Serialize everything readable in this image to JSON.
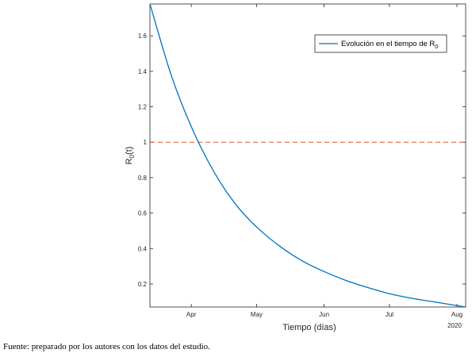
{
  "chart_data": {
    "type": "line",
    "xlabel": "Tiempo (días)",
    "ylabel_main": "R",
    "ylabel_sub": "0",
    "ylabel_tail": "(t)",
    "x_tick_labels": [
      "Apr",
      "May",
      "Jun",
      "Jul",
      "Aug"
    ],
    "x_year_label": "2020",
    "x_range_days": [
      0,
      145
    ],
    "x_tick_days": [
      19,
      49,
      80,
      110,
      141
    ],
    "ylim": [
      0.07,
      1.78
    ],
    "y_ticks": [
      0.2,
      0.4,
      0.6,
      0.8,
      1,
      1.2,
      1.4,
      1.6
    ],
    "y_tick_labels": [
      "0.2",
      "0.4",
      "0.6",
      "0.8",
      "1",
      "1.2",
      "1.4",
      "1.6"
    ],
    "series": [
      {
        "name_main": "Evolución en el tiempo de R",
        "name_sub": "0",
        "color": "#0072BD",
        "x": [
          0,
          10,
          20,
          30,
          40,
          50,
          60,
          70,
          80,
          90,
          100,
          110,
          120,
          130,
          140,
          145
        ],
        "y": [
          1.78,
          1.37,
          1.06,
          0.82,
          0.64,
          0.51,
          0.41,
          0.33,
          0.27,
          0.22,
          0.18,
          0.145,
          0.12,
          0.1,
          0.08,
          0.07
        ]
      }
    ],
    "reference_line": {
      "y": 1,
      "color": "#D95319",
      "style": "dashed"
    },
    "legend_position": "top-right",
    "grid": false
  },
  "caption": "Fuente: preparado por los autores con los datos del estudio."
}
